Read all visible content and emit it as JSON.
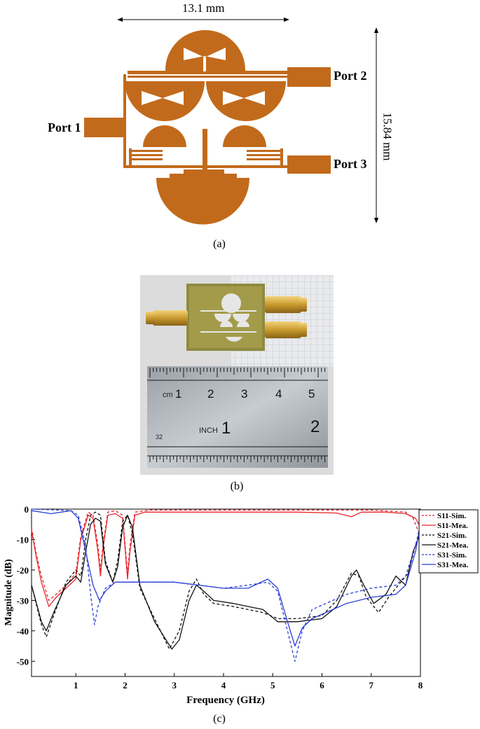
{
  "panel_a": {
    "width_label": "13.1 mm",
    "height_label": "15.84 mm",
    "port1": "Port 1",
    "port2": "Port 2",
    "port3": "Port 3",
    "caption": "(a)",
    "copper_color": "#c26a1b"
  },
  "panel_b": {
    "caption": "(b)",
    "ruler_cm_label": "cm",
    "ruler_cm_ticks": [
      "1",
      "2",
      "3",
      "4",
      "5"
    ],
    "ruler_inch_label": "INCH",
    "ruler_inch_ticks": [
      "1",
      "2"
    ],
    "ruler_small_number": "32"
  },
  "panel_c": {
    "caption": "(c)",
    "chart_data": {
      "type": "line",
      "xlabel": "Frequency (GHz)",
      "ylabel": "Magnitude (dB)",
      "xlim": [
        0.1,
        8
      ],
      "ylim": [
        -55,
        0
      ],
      "xticks": [
        "1",
        "2",
        "3",
        "4",
        "5",
        "6",
        "7",
        "8"
      ],
      "yticks": [
        "0",
        "-10",
        "-20",
        "-30",
        "-40",
        "-50"
      ],
      "legend_position": "right",
      "series": [
        {
          "name": "S11-Sim.",
          "color": "#e8262b",
          "dash": true,
          "points": [
            [
              0.1,
              -6
            ],
            [
              0.2,
              -15
            ],
            [
              0.3,
              -22
            ],
            [
              0.45,
              -30
            ],
            [
              0.6,
              -28
            ],
            [
              0.8,
              -25
            ],
            [
              1.0,
              -21
            ],
            [
              1.1,
              -9
            ],
            [
              1.25,
              -1
            ],
            [
              1.35,
              -2
            ],
            [
              1.45,
              -12
            ],
            [
              1.5,
              -20
            ],
            [
              1.55,
              -12
            ],
            [
              1.65,
              -1
            ],
            [
              1.8,
              -0.5
            ],
            [
              1.95,
              -2
            ],
            [
              2.05,
              -21
            ],
            [
              2.1,
              -12
            ],
            [
              2.2,
              -1
            ],
            [
              2.5,
              -0.3
            ],
            [
              4,
              -0.3
            ],
            [
              6,
              -0.3
            ],
            [
              7,
              -0.3
            ],
            [
              7.7,
              -1
            ],
            [
              7.85,
              -3
            ],
            [
              8,
              -9
            ]
          ]
        },
        {
          "name": "S11-Mea.",
          "color": "#e8262b",
          "dash": false,
          "points": [
            [
              0.1,
              -7
            ],
            [
              0.2,
              -16
            ],
            [
              0.3,
              -24
            ],
            [
              0.45,
              -32
            ],
            [
              0.6,
              -29
            ],
            [
              0.8,
              -26
            ],
            [
              1.0,
              -23
            ],
            [
              1.1,
              -10
            ],
            [
              1.25,
              -2
            ],
            [
              1.35,
              -3
            ],
            [
              1.45,
              -14
            ],
            [
              1.5,
              -22
            ],
            [
              1.55,
              -13
            ],
            [
              1.65,
              -2
            ],
            [
              1.8,
              -1.5
            ],
            [
              1.95,
              -3
            ],
            [
              2.05,
              -23
            ],
            [
              2.1,
              -14
            ],
            [
              2.2,
              -2
            ],
            [
              2.4,
              -1
            ],
            [
              4,
              -1
            ],
            [
              5.5,
              -1
            ],
            [
              6.3,
              -1.3
            ],
            [
              6.6,
              -2.5
            ],
            [
              6.8,
              -1
            ],
            [
              7.3,
              -1
            ],
            [
              7.7,
              -1.5
            ],
            [
              7.9,
              -3
            ],
            [
              8,
              -6
            ]
          ]
        },
        {
          "name": "S21-Sim.",
          "color": "#111111",
          "dash": true,
          "points": [
            [
              0.1,
              -25
            ],
            [
              0.3,
              -38
            ],
            [
              0.4,
              -42
            ],
            [
              0.55,
              -35
            ],
            [
              0.8,
              -24
            ],
            [
              1.0,
              -20
            ],
            [
              1.1,
              -22
            ],
            [
              1.2,
              -10
            ],
            [
              1.3,
              -2
            ],
            [
              1.4,
              -1
            ],
            [
              1.5,
              -2
            ],
            [
              1.6,
              -17
            ],
            [
              1.75,
              -24
            ],
            [
              1.85,
              -17
            ],
            [
              1.95,
              -4
            ],
            [
              2.05,
              -2
            ],
            [
              2.15,
              -8
            ],
            [
              2.3,
              -26
            ],
            [
              2.6,
              -36
            ],
            [
              2.9,
              -46
            ],
            [
              3.1,
              -40
            ],
            [
              3.3,
              -27
            ],
            [
              3.45,
              -23
            ],
            [
              3.6,
              -28
            ],
            [
              3.8,
              -31
            ],
            [
              4.2,
              -32
            ],
            [
              4.8,
              -34
            ],
            [
              5.1,
              -36
            ],
            [
              5.5,
              -36
            ],
            [
              6.0,
              -35
            ],
            [
              6.3,
              -30
            ],
            [
              6.6,
              -21
            ],
            [
              6.75,
              -22
            ],
            [
              6.9,
              -29
            ],
            [
              7.15,
              -34
            ],
            [
              7.35,
              -29
            ],
            [
              7.55,
              -25
            ],
            [
              7.75,
              -21
            ],
            [
              7.9,
              -12
            ],
            [
              8,
              -6
            ]
          ]
        },
        {
          "name": "S21-Mea.",
          "color": "#111111",
          "dash": false,
          "points": [
            [
              0.1,
              -25
            ],
            [
              0.3,
              -37
            ],
            [
              0.4,
              -40
            ],
            [
              0.55,
              -34
            ],
            [
              0.8,
              -25
            ],
            [
              1.0,
              -22
            ],
            [
              1.1,
              -24
            ],
            [
              1.2,
              -14
            ],
            [
              1.3,
              -5
            ],
            [
              1.4,
              -3
            ],
            [
              1.5,
              -4
            ],
            [
              1.6,
              -18
            ],
            [
              1.75,
              -24
            ],
            [
              1.85,
              -19
            ],
            [
              1.95,
              -6
            ],
            [
              2.05,
              -2
            ],
            [
              2.15,
              -6
            ],
            [
              2.3,
              -25
            ],
            [
              2.6,
              -37
            ],
            [
              2.95,
              -46
            ],
            [
              3.1,
              -43
            ],
            [
              3.3,
              -30
            ],
            [
              3.45,
              -25
            ],
            [
              3.6,
              -27
            ],
            [
              3.8,
              -30
            ],
            [
              4.2,
              -31
            ],
            [
              4.8,
              -33
            ],
            [
              5.1,
              -37
            ],
            [
              5.5,
              -37
            ],
            [
              6.0,
              -36
            ],
            [
              6.3,
              -32
            ],
            [
              6.6,
              -22
            ],
            [
              6.7,
              -20
            ],
            [
              6.85,
              -25
            ],
            [
              7.05,
              -31
            ],
            [
              7.3,
              -28
            ],
            [
              7.5,
              -22
            ],
            [
              7.7,
              -25
            ],
            [
              7.85,
              -14
            ],
            [
              8,
              -8
            ]
          ]
        },
        {
          "name": "S31-Sim.",
          "color": "#2a3fd6",
          "dash": true,
          "points": [
            [
              0.1,
              0
            ],
            [
              0.5,
              -0.2
            ],
            [
              0.9,
              -0.5
            ],
            [
              1.05,
              -2
            ],
            [
              1.2,
              -12
            ],
            [
              1.3,
              -28
            ],
            [
              1.38,
              -38
            ],
            [
              1.45,
              -32
            ],
            [
              1.6,
              -26
            ],
            [
              1.8,
              -24
            ],
            [
              2.2,
              -24
            ],
            [
              3.0,
              -24
            ],
            [
              3.5,
              -25
            ],
            [
              4.0,
              -26
            ],
            [
              4.5,
              -25
            ],
            [
              4.9,
              -24
            ],
            [
              5.1,
              -27
            ],
            [
              5.3,
              -40
            ],
            [
              5.45,
              -50
            ],
            [
              5.6,
              -40
            ],
            [
              5.8,
              -33
            ],
            [
              6.5,
              -28
            ],
            [
              7.0,
              -26
            ],
            [
              7.5,
              -25
            ],
            [
              7.7,
              -22
            ],
            [
              7.9,
              -12
            ],
            [
              8,
              -5
            ]
          ]
        },
        {
          "name": "S31-Mea.",
          "color": "#2a3fd6",
          "dash": false,
          "points": [
            [
              0.1,
              -0.5
            ],
            [
              0.5,
              -1.5
            ],
            [
              0.9,
              -0.5
            ],
            [
              1.05,
              -3
            ],
            [
              1.2,
              -14
            ],
            [
              1.35,
              -25
            ],
            [
              1.48,
              -30
            ],
            [
              1.6,
              -27
            ],
            [
              1.8,
              -24
            ],
            [
              2.2,
              -24
            ],
            [
              3.0,
              -24
            ],
            [
              3.5,
              -25
            ],
            [
              4.0,
              -26
            ],
            [
              4.5,
              -26
            ],
            [
              4.9,
              -23
            ],
            [
              5.1,
              -26
            ],
            [
              5.3,
              -37
            ],
            [
              5.45,
              -45
            ],
            [
              5.6,
              -39
            ],
            [
              5.8,
              -36
            ],
            [
              6.5,
              -31
            ],
            [
              7.0,
              -29
            ],
            [
              7.5,
              -28
            ],
            [
              7.7,
              -25
            ],
            [
              7.9,
              -14
            ],
            [
              8,
              -5
            ]
          ]
        }
      ]
    }
  }
}
